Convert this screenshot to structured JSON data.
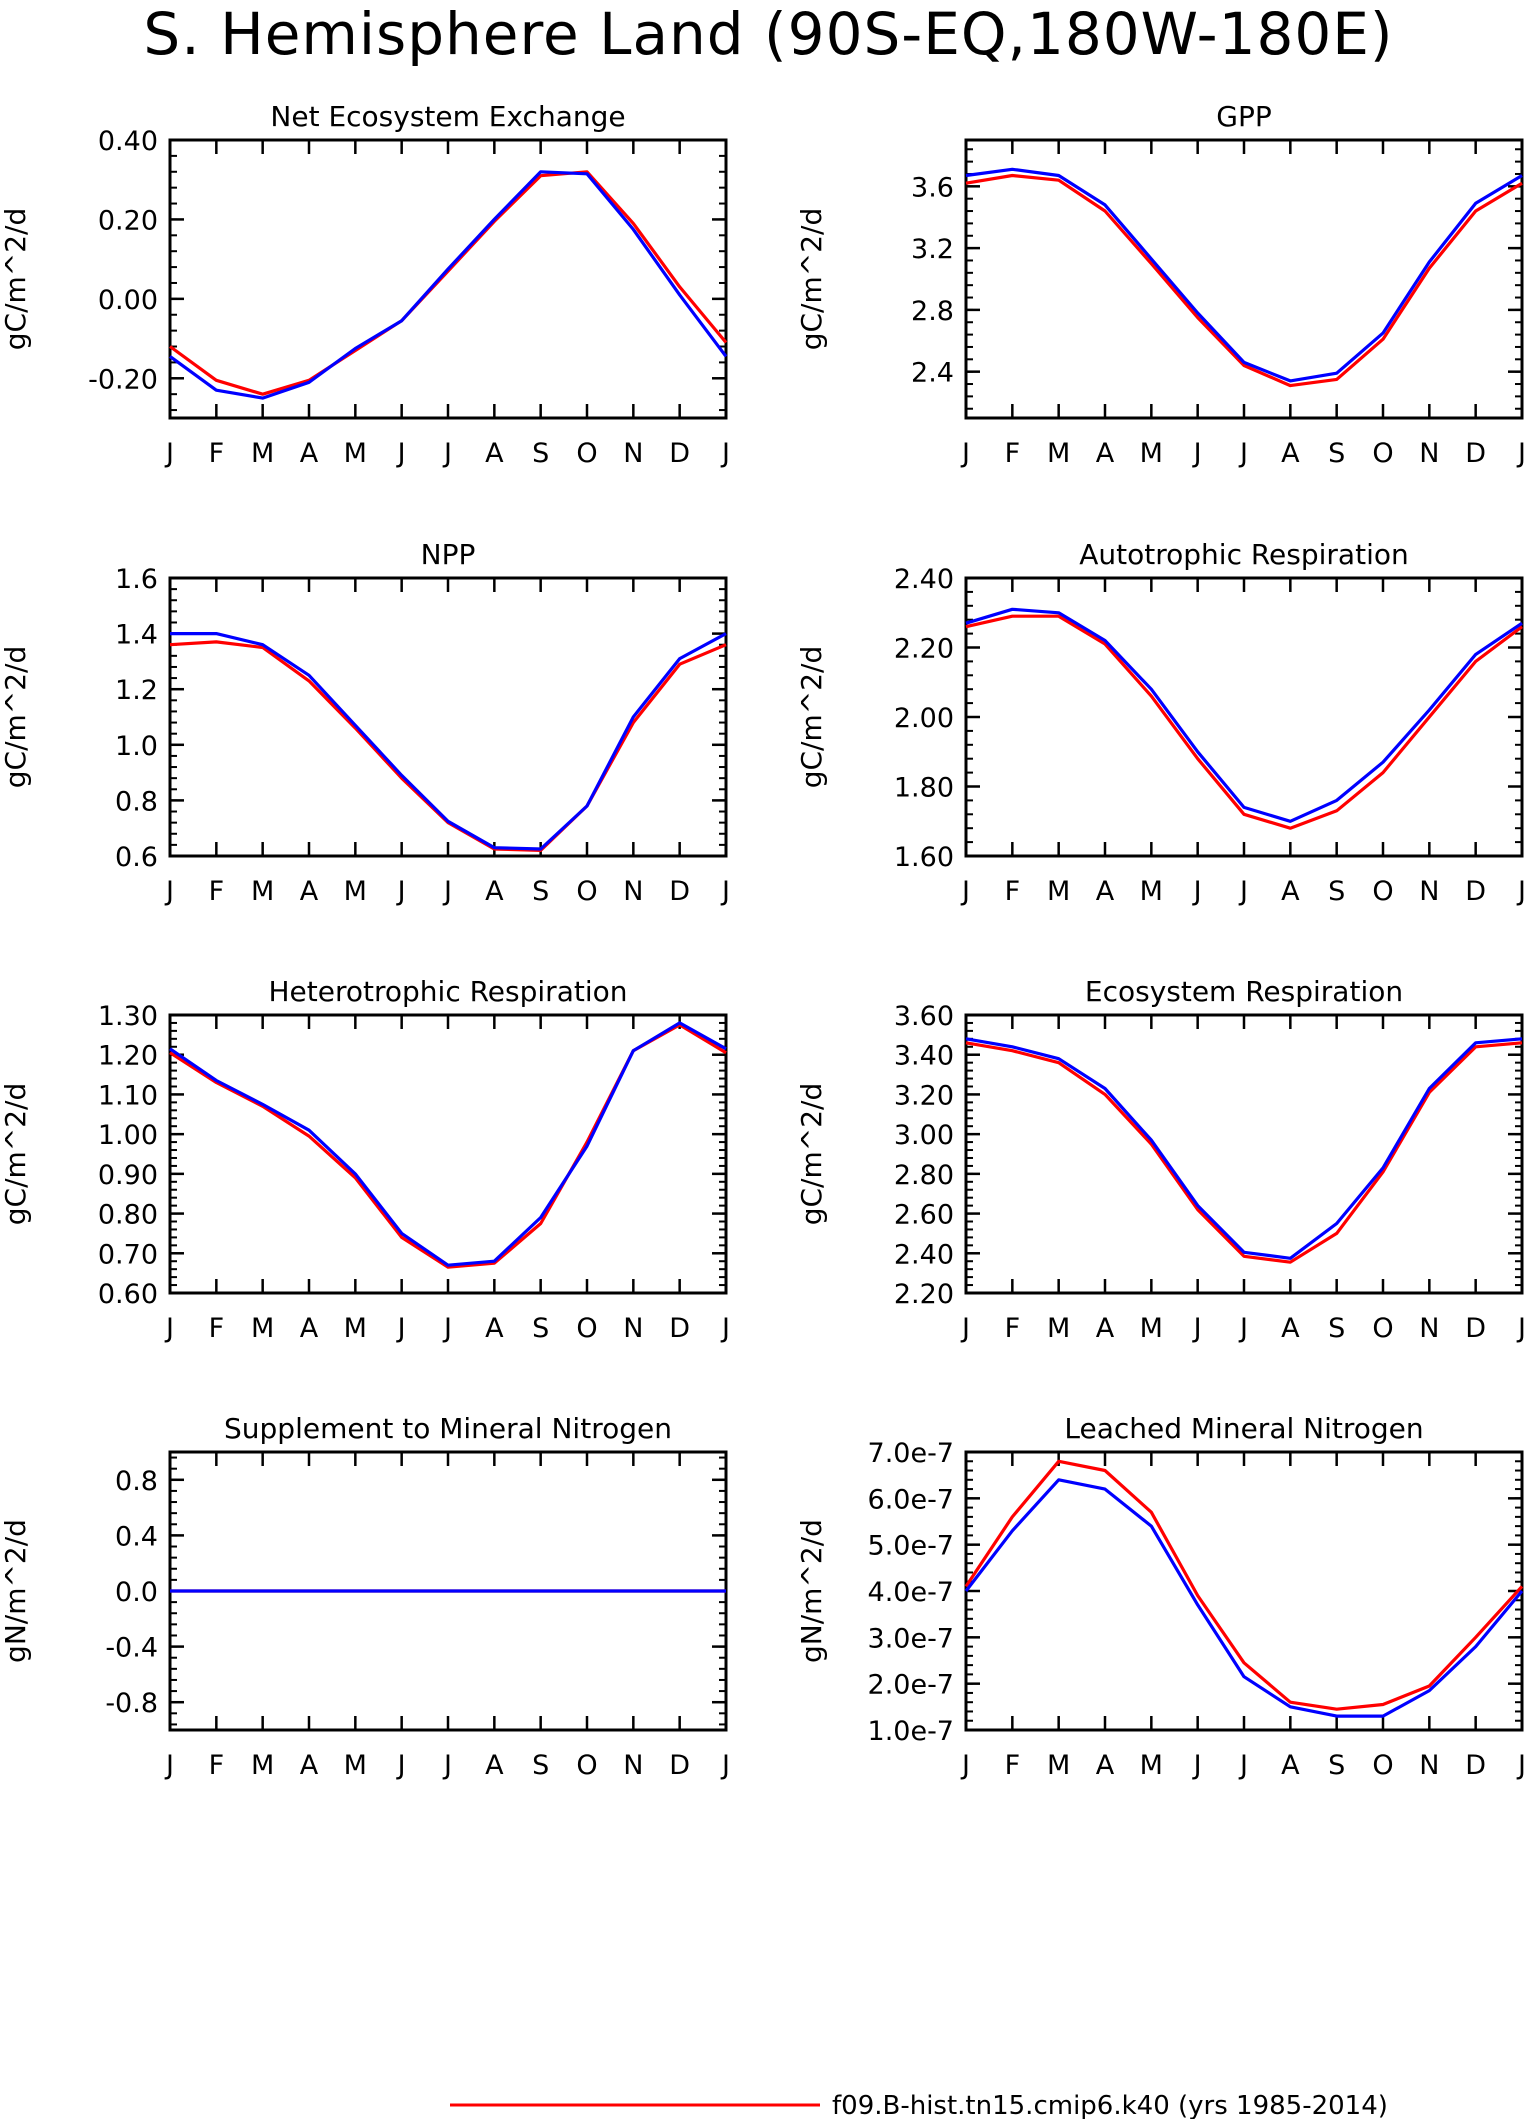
{
  "page_title": "S. Hemisphere Land (90S-EQ,180W-180E)",
  "colors": {
    "case1": "#ff0000",
    "case2": "#0000ff",
    "axis": "#000000"
  },
  "legend": [
    {
      "label": "f09.B-hist.tn15.cmip6.k40 (yrs 1985-2014)",
      "color": "#ff0000"
    }
  ],
  "chart_data": [
    {
      "type": "line",
      "title": "Net Ecosystem Exchange",
      "ylabel": "gC/m^2/d",
      "categories": [
        "J",
        "F",
        "M",
        "A",
        "M",
        "J",
        "J",
        "A",
        "S",
        "O",
        "N",
        "D",
        "J"
      ],
      "ylim": [
        -0.3,
        0.4
      ],
      "yticks": [
        -0.2,
        0.0,
        0.2,
        0.4
      ],
      "ytick_labels": [
        "-0.20",
        "0.00",
        "0.20",
        "0.40"
      ],
      "series": [
        {
          "color": "#ff0000",
          "values": [
            -0.12,
            -0.205,
            -0.24,
            -0.205,
            -0.13,
            -0.055,
            0.07,
            0.195,
            0.31,
            0.32,
            0.19,
            0.03,
            -0.11
          ]
        },
        {
          "color": "#0000ff",
          "values": [
            -0.145,
            -0.23,
            -0.25,
            -0.21,
            -0.125,
            -0.055,
            0.075,
            0.2,
            0.32,
            0.315,
            0.175,
            0.01,
            -0.145
          ]
        }
      ]
    },
    {
      "type": "line",
      "title": "GPP",
      "ylabel": "gC/m^2/d",
      "categories": [
        "J",
        "F",
        "M",
        "A",
        "M",
        "J",
        "J",
        "A",
        "S",
        "O",
        "N",
        "D",
        "J"
      ],
      "ylim": [
        2.1,
        3.9
      ],
      "yticks": [
        2.4,
        2.8,
        3.2,
        3.6
      ],
      "ytick_labels": [
        "2.4",
        "2.8",
        "3.2",
        "3.6"
      ],
      "series": [
        {
          "color": "#ff0000",
          "values": [
            3.62,
            3.67,
            3.64,
            3.44,
            3.1,
            2.75,
            2.44,
            2.31,
            2.35,
            2.61,
            3.07,
            3.44,
            3.62
          ]
        },
        {
          "color": "#0000ff",
          "values": [
            3.67,
            3.71,
            3.67,
            3.48,
            3.13,
            2.78,
            2.46,
            2.34,
            2.39,
            2.65,
            3.11,
            3.49,
            3.67
          ]
        }
      ]
    },
    {
      "type": "line",
      "title": "NPP",
      "ylabel": "gC/m^2/d",
      "categories": [
        "J",
        "F",
        "M",
        "A",
        "M",
        "J",
        "J",
        "A",
        "S",
        "O",
        "N",
        "D",
        "J"
      ],
      "ylim": [
        0.6,
        1.6
      ],
      "yticks": [
        0.6,
        0.8,
        1.0,
        1.2,
        1.4,
        1.6
      ],
      "ytick_labels": [
        "0.6",
        "0.8",
        "1.0",
        "1.2",
        "1.4",
        "1.6"
      ],
      "series": [
        {
          "color": "#ff0000",
          "values": [
            1.36,
            1.37,
            1.35,
            1.23,
            1.06,
            0.88,
            0.72,
            0.625,
            0.62,
            0.78,
            1.08,
            1.29,
            1.36
          ]
        },
        {
          "color": "#0000ff",
          "values": [
            1.4,
            1.4,
            1.36,
            1.25,
            1.07,
            0.89,
            0.725,
            0.63,
            0.625,
            0.78,
            1.1,
            1.31,
            1.4
          ]
        }
      ]
    },
    {
      "type": "line",
      "title": "Autotrophic Respiration",
      "ylabel": "gC/m^2/d",
      "categories": [
        "J",
        "F",
        "M",
        "A",
        "M",
        "J",
        "J",
        "A",
        "S",
        "O",
        "N",
        "D",
        "J"
      ],
      "ylim": [
        1.6,
        2.4
      ],
      "yticks": [
        1.6,
        1.8,
        2.0,
        2.2,
        2.4
      ],
      "ytick_labels": [
        "1.60",
        "1.80",
        "2.00",
        "2.20",
        "2.40"
      ],
      "series": [
        {
          "color": "#ff0000",
          "values": [
            2.26,
            2.29,
            2.29,
            2.21,
            2.06,
            1.88,
            1.72,
            1.68,
            1.73,
            1.84,
            2.0,
            2.16,
            2.26
          ]
        },
        {
          "color": "#0000ff",
          "values": [
            2.27,
            2.31,
            2.3,
            2.22,
            2.08,
            1.9,
            1.74,
            1.7,
            1.76,
            1.87,
            2.02,
            2.18,
            2.27
          ]
        }
      ]
    },
    {
      "type": "line",
      "title": "Heterotrophic Respiration",
      "ylabel": "gC/m^2/d",
      "categories": [
        "J",
        "F",
        "M",
        "A",
        "M",
        "J",
        "J",
        "A",
        "S",
        "O",
        "N",
        "D",
        "J"
      ],
      "ylim": [
        0.6,
        1.3
      ],
      "yticks": [
        0.6,
        0.7,
        0.8,
        0.9,
        1.0,
        1.1,
        1.2,
        1.3
      ],
      "ytick_labels": [
        "0.60",
        "0.70",
        "0.80",
        "0.90",
        "1.00",
        "1.10",
        "1.20",
        "1.30"
      ],
      "series": [
        {
          "color": "#ff0000",
          "values": [
            1.205,
            1.13,
            1.07,
            0.995,
            0.89,
            0.74,
            0.665,
            0.675,
            0.775,
            0.98,
            1.21,
            1.275,
            1.205
          ]
        },
        {
          "color": "#0000ff",
          "values": [
            1.215,
            1.135,
            1.075,
            1.01,
            0.9,
            0.75,
            0.67,
            0.68,
            0.79,
            0.97,
            1.21,
            1.28,
            1.215
          ]
        }
      ]
    },
    {
      "type": "line",
      "title": "Ecosystem Respiration",
      "ylabel": "gC/m^2/d",
      "categories": [
        "J",
        "F",
        "M",
        "A",
        "M",
        "J",
        "J",
        "A",
        "S",
        "O",
        "N",
        "D",
        "J"
      ],
      "ylim": [
        2.2,
        3.6
      ],
      "yticks": [
        2.2,
        2.4,
        2.6,
        2.8,
        3.0,
        3.2,
        3.4,
        3.6
      ],
      "ytick_labels": [
        "2.20",
        "2.40",
        "2.60",
        "2.80",
        "3.00",
        "3.20",
        "3.40",
        "3.60"
      ],
      "series": [
        {
          "color": "#ff0000",
          "values": [
            3.46,
            3.42,
            3.36,
            3.2,
            2.95,
            2.62,
            2.385,
            2.355,
            2.5,
            2.81,
            3.21,
            3.44,
            3.46
          ]
        },
        {
          "color": "#0000ff",
          "values": [
            3.48,
            3.44,
            3.38,
            3.23,
            2.97,
            2.64,
            2.405,
            2.375,
            2.55,
            2.83,
            3.23,
            3.46,
            3.48
          ]
        }
      ]
    },
    {
      "type": "line",
      "title": "Supplement to Mineral Nitrogen",
      "ylabel": "gN/m^2/d",
      "categories": [
        "J",
        "F",
        "M",
        "A",
        "M",
        "J",
        "J",
        "A",
        "S",
        "O",
        "N",
        "D",
        "J"
      ],
      "ylim": [
        -1.0,
        1.0
      ],
      "yticks": [
        -0.8,
        -0.4,
        0.0,
        0.4,
        0.8
      ],
      "ytick_labels": [
        "-0.8",
        "-0.4",
        "0.0",
        "0.4",
        "0.8"
      ],
      "series": [
        {
          "color": "#ff0000",
          "values": [
            0,
            0,
            0,
            0,
            0,
            0,
            0,
            0,
            0,
            0,
            0,
            0,
            0
          ]
        },
        {
          "color": "#0000ff",
          "values": [
            0,
            0,
            0,
            0,
            0,
            0,
            0,
            0,
            0,
            0,
            0,
            0,
            0
          ]
        }
      ]
    },
    {
      "type": "line",
      "title": "Leached Mineral Nitrogen",
      "ylabel": "gN/m^2/d",
      "categories": [
        "J",
        "F",
        "M",
        "A",
        "M",
        "J",
        "J",
        "A",
        "S",
        "O",
        "N",
        "D",
        "J"
      ],
      "ylim": [
        1e-07,
        7e-07
      ],
      "yticks": [
        1e-07,
        2e-07,
        3e-07,
        4e-07,
        5e-07,
        6e-07,
        7e-07
      ],
      "ytick_labels": [
        "1.0e-7",
        "2.0e-7",
        "3.0e-7",
        "4.0e-7",
        "5.0e-7",
        "6.0e-7",
        "7.0e-7"
      ],
      "series": [
        {
          "color": "#ff0000",
          "values": [
            4.1e-07,
            5.6e-07,
            6.8e-07,
            6.6e-07,
            5.7e-07,
            3.9e-07,
            2.45e-07,
            1.6e-07,
            1.45e-07,
            1.55e-07,
            1.95e-07,
            3e-07,
            4.1e-07
          ]
        },
        {
          "color": "#0000ff",
          "values": [
            4e-07,
            5.3e-07,
            6.4e-07,
            6.2e-07,
            5.4e-07,
            3.7e-07,
            2.15e-07,
            1.5e-07,
            1.3e-07,
            1.3e-07,
            1.85e-07,
            2.8e-07,
            4e-07
          ]
        }
      ]
    }
  ]
}
